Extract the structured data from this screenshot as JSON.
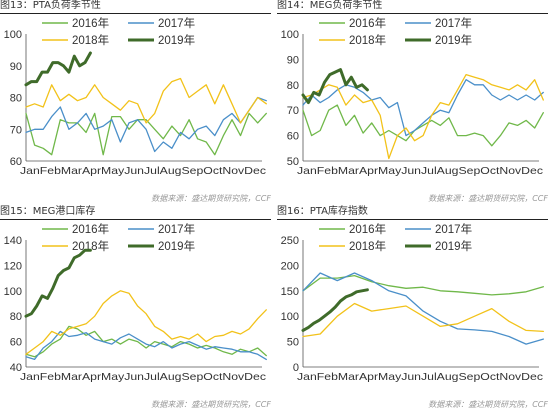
{
  "source_note": "数据来源：盛达期货研究院，CCF",
  "charts": [
    {
      "type": "line",
      "title": "图13：PTA负荷季节性",
      "xlabel": "",
      "ylabel": "",
      "categories": [
        "Jan",
        "Feb",
        "Mar",
        "Apr",
        "May",
        "Jun",
        "Jul",
        "Aug",
        "Sep",
        "Oct",
        "Nov",
        "Dec"
      ],
      "ylim": [
        60,
        100
      ],
      "yticks": [
        60,
        70,
        80,
        90,
        100
      ],
      "legend_position": "top",
      "series": [
        {
          "name": "2016年",
          "color": "#70b84a",
          "width": 1.3,
          "x": [
            0,
            0.4,
            0.8,
            1.2,
            1.6,
            2.0,
            2.4,
            2.8,
            3.2,
            3.6,
            4.0,
            4.4,
            4.8,
            5.2,
            5.6,
            6.0,
            6.4,
            6.8,
            7.2,
            7.6,
            8.0,
            8.4,
            8.8,
            9.2,
            9.6,
            10.0,
            10.4,
            10.8,
            11.2
          ],
          "values": [
            75,
            65,
            64,
            62,
            73,
            72,
            72,
            69,
            75,
            62,
            74,
            74,
            70,
            73,
            73,
            70,
            67,
            71,
            68,
            73,
            67,
            66,
            62,
            68,
            73,
            68,
            75,
            72,
            75
          ]
        },
        {
          "name": "2017年",
          "color": "#4a8fc9",
          "width": 1.3,
          "x": [
            0,
            0.4,
            0.8,
            1.2,
            1.6,
            2.0,
            2.4,
            2.8,
            3.2,
            3.6,
            4.0,
            4.4,
            4.8,
            5.2,
            5.6,
            6.0,
            6.4,
            6.8,
            7.2,
            7.6,
            8.0,
            8.4,
            8.8,
            9.2,
            9.6,
            10.0,
            10.4,
            10.8,
            11.2
          ],
          "values": [
            69,
            70,
            70,
            74,
            77,
            70,
            72,
            75,
            70,
            71,
            73,
            66,
            72,
            73,
            70,
            63,
            66,
            64,
            69,
            67,
            70,
            71,
            68,
            73,
            75,
            72,
            76,
            80,
            79
          ]
        },
        {
          "name": "2018年",
          "color": "#f2c21a",
          "width": 1.3,
          "x": [
            0,
            0.4,
            0.8,
            1.2,
            1.6,
            2.0,
            2.4,
            2.8,
            3.2,
            3.6,
            4.0,
            4.4,
            4.8,
            5.2,
            5.6,
            6.0,
            6.4,
            6.8,
            7.2,
            7.6,
            8.0,
            8.4,
            8.8,
            9.2,
            9.6,
            10.0,
            10.4,
            10.8,
            11.2
          ],
          "values": [
            77,
            78,
            77,
            84,
            79,
            81,
            79,
            80,
            84,
            80,
            78,
            76,
            79,
            78,
            72,
            75,
            82,
            85,
            86,
            80,
            82,
            84,
            78,
            84,
            78,
            72,
            76,
            80,
            78
          ]
        },
        {
          "name": "2019年",
          "color": "#3f6b2a",
          "width": 3,
          "x": [
            0,
            0.25,
            0.5,
            0.75,
            1.0,
            1.25,
            1.5,
            1.75,
            2.0,
            2.25,
            2.5,
            2.75,
            3.0
          ],
          "values": [
            84,
            85,
            85,
            88,
            88,
            91,
            91,
            90,
            88,
            93,
            90,
            91,
            94
          ]
        }
      ]
    },
    {
      "type": "line",
      "title": "图14：MEG负荷季节性",
      "xlabel": "",
      "ylabel": "",
      "categories": [
        "Jan",
        "Feb",
        "Mar",
        "Apr",
        "May",
        "Jun",
        "Jul",
        "Aug",
        "Sep",
        "Oct",
        "Nov",
        "Dec"
      ],
      "ylim": [
        50,
        100
      ],
      "yticks": [
        50,
        60,
        70,
        80,
        90,
        100
      ],
      "legend_position": "top",
      "series": [
        {
          "name": "2016年",
          "color": "#70b84a",
          "width": 1.3,
          "x": [
            0,
            0.4,
            0.8,
            1.2,
            1.6,
            2.0,
            2.4,
            2.8,
            3.2,
            3.6,
            4.0,
            4.4,
            4.8,
            5.2,
            5.6,
            6.0,
            6.4,
            6.8,
            7.2,
            7.6,
            8.0,
            8.4,
            8.8,
            9.2,
            9.6,
            10.0,
            10.4,
            10.8,
            11.2
          ],
          "values": [
            70,
            60,
            62,
            70,
            72,
            64,
            68,
            61,
            65,
            60,
            62,
            60,
            58,
            62,
            64,
            66,
            64,
            67,
            60,
            60,
            61,
            60,
            56,
            60,
            65,
            64,
            66,
            63,
            69
          ]
        },
        {
          "name": "2017年",
          "color": "#4a8fc9",
          "width": 1.3,
          "x": [
            0,
            0.4,
            0.8,
            1.2,
            1.6,
            2.0,
            2.4,
            2.8,
            3.2,
            3.6,
            4.0,
            4.4,
            4.8,
            5.2,
            5.6,
            6.0,
            6.4,
            6.8,
            7.2,
            7.6,
            8.0,
            8.4,
            8.8,
            9.2,
            9.6,
            10.0,
            10.4,
            10.8,
            11.2
          ],
          "values": [
            72,
            76,
            73,
            75,
            78,
            80,
            79,
            77,
            74,
            75,
            71,
            73,
            60,
            62,
            65,
            68,
            70,
            69,
            76,
            82,
            80,
            80,
            76,
            74,
            76,
            74,
            76,
            74,
            77
          ]
        },
        {
          "name": "2018年",
          "color": "#f2c21a",
          "width": 1.3,
          "x": [
            0,
            0.4,
            0.8,
            1.2,
            1.6,
            2.0,
            2.4,
            2.8,
            3.2,
            3.6,
            4.0,
            4.4,
            4.8,
            5.2,
            5.6,
            6.0,
            6.4,
            6.8,
            7.2,
            7.6,
            8.0,
            8.4,
            8.8,
            9.2,
            9.6,
            10.0,
            10.4,
            10.8,
            11.2
          ],
          "values": [
            75,
            76,
            78,
            80,
            79,
            72,
            76,
            73,
            74,
            68,
            51,
            60,
            63,
            58,
            60,
            68,
            73,
            72,
            78,
            84,
            83,
            82,
            80,
            79,
            78,
            80,
            78,
            82,
            74
          ]
        },
        {
          "name": "2019年",
          "color": "#3f6b2a",
          "width": 3,
          "x": [
            0,
            0.25,
            0.5,
            0.75,
            1.0,
            1.25,
            1.5,
            1.75,
            2.0,
            2.25,
            2.5,
            2.75,
            3.0
          ],
          "values": [
            76,
            73,
            77,
            76,
            81,
            84,
            85,
            86,
            80,
            83,
            79,
            80,
            78
          ]
        }
      ]
    },
    {
      "type": "line",
      "title": "图15：MEG港口库存",
      "xlabel": "",
      "ylabel": "",
      "categories": [
        "Jan",
        "Feb",
        "Mar",
        "Apr",
        "May",
        "Jun",
        "Jul",
        "Aug",
        "Sep",
        "Oct",
        "Nov",
        "Dec"
      ],
      "ylim": [
        40,
        140
      ],
      "yticks": [
        40,
        60,
        80,
        100,
        120,
        140
      ],
      "legend_position": "top",
      "series": [
        {
          "name": "2016年",
          "color": "#70b84a",
          "width": 1.3,
          "x": [
            0,
            0.4,
            0.8,
            1.2,
            1.6,
            2.0,
            2.4,
            2.8,
            3.2,
            3.6,
            4.0,
            4.4,
            4.8,
            5.2,
            5.6,
            6.0,
            6.4,
            6.8,
            7.2,
            7.6,
            8.0,
            8.4,
            8.8,
            9.2,
            9.6,
            10.0,
            10.4,
            10.8,
            11.2
          ],
          "values": [
            50,
            48,
            52,
            58,
            62,
            72,
            70,
            65,
            68,
            60,
            62,
            58,
            62,
            60,
            55,
            60,
            58,
            56,
            60,
            58,
            55,
            57,
            55,
            52,
            50,
            54,
            52,
            55,
            49
          ]
        },
        {
          "name": "2017年",
          "color": "#4a8fc9",
          "width": 1.3,
          "x": [
            0,
            0.4,
            0.8,
            1.2,
            1.6,
            2.0,
            2.4,
            2.8,
            3.2,
            3.6,
            4.0,
            4.4,
            4.8,
            5.2,
            5.6,
            6.0,
            6.4,
            6.8,
            7.2,
            7.6,
            8.0,
            8.4,
            8.8,
            9.2,
            9.6,
            10.0,
            10.4,
            10.8,
            11.2
          ],
          "values": [
            48,
            46,
            55,
            60,
            68,
            64,
            65,
            67,
            62,
            60,
            58,
            63,
            66,
            62,
            58,
            56,
            60,
            55,
            58,
            60,
            57,
            54,
            56,
            55,
            54,
            52,
            52,
            50,
            46
          ]
        },
        {
          "name": "2018年",
          "color": "#f2c21a",
          "width": 1.3,
          "x": [
            0,
            0.4,
            0.8,
            1.2,
            1.6,
            2.0,
            2.4,
            2.8,
            3.2,
            3.6,
            4.0,
            4.4,
            4.8,
            5.2,
            5.6,
            6.0,
            6.4,
            6.8,
            7.2,
            7.6,
            8.0,
            8.4,
            8.8,
            9.2,
            9.6,
            10.0,
            10.4,
            10.8,
            11.2
          ],
          "values": [
            50,
            55,
            60,
            68,
            65,
            70,
            72,
            74,
            80,
            90,
            96,
            100,
            98,
            88,
            82,
            72,
            68,
            62,
            64,
            62,
            66,
            60,
            64,
            65,
            68,
            66,
            70,
            78,
            85
          ]
        },
        {
          "name": "2019年",
          "color": "#3f6b2a",
          "width": 3,
          "x": [
            0,
            0.25,
            0.5,
            0.75,
            1.0,
            1.25,
            1.5,
            1.75,
            2.0,
            2.25,
            2.5,
            2.75,
            3.0
          ],
          "values": [
            80,
            82,
            88,
            96,
            94,
            102,
            112,
            116,
            118,
            126,
            128,
            132,
            132
          ]
        }
      ]
    },
    {
      "type": "line",
      "title": "图16：PTA库存指数",
      "xlabel": "",
      "ylabel": "",
      "categories": [
        "Jan",
        "Feb",
        "Mar",
        "Apr",
        "May",
        "Jun",
        "Jul",
        "Aug",
        "Sep",
        "Oct",
        "Nov",
        "Dec"
      ],
      "ylim": [
        0,
        250
      ],
      "yticks": [
        0,
        50,
        100,
        150,
        200,
        250
      ],
      "legend_position": "top",
      "series": [
        {
          "name": "2016年",
          "color": "#70b84a",
          "width": 1.3,
          "x": [
            0,
            0.8,
            1.6,
            2.4,
            3.2,
            4.0,
            4.8,
            5.6,
            6.4,
            7.2,
            8.0,
            8.8,
            9.6,
            10.4,
            11.2
          ],
          "values": [
            150,
            175,
            175,
            180,
            168,
            160,
            155,
            157,
            150,
            148,
            145,
            142,
            144,
            148,
            158
          ]
        },
        {
          "name": "2017年",
          "color": "#4a8fc9",
          "width": 1.3,
          "x": [
            0,
            0.8,
            1.6,
            2.4,
            3.2,
            4.0,
            4.8,
            5.6,
            6.4,
            7.2,
            8.0,
            8.8,
            9.6,
            10.4,
            11.2
          ],
          "values": [
            150,
            185,
            170,
            185,
            170,
            150,
            140,
            110,
            90,
            75,
            73,
            70,
            60,
            45,
            55
          ]
        },
        {
          "name": "2018年",
          "color": "#f2c21a",
          "width": 1.3,
          "x": [
            0,
            0.8,
            1.6,
            2.4,
            3.2,
            4.0,
            4.8,
            5.6,
            6.4,
            7.2,
            8.0,
            8.8,
            9.6,
            10.4,
            11.2
          ],
          "values": [
            60,
            65,
            100,
            125,
            110,
            115,
            120,
            100,
            80,
            85,
            100,
            115,
            90,
            72,
            70
          ]
        },
        {
          "name": "2019年",
          "color": "#3f6b2a",
          "width": 3,
          "x": [
            0,
            0.25,
            0.5,
            0.75,
            1.0,
            1.25,
            1.5,
            1.75,
            2.0,
            2.25,
            2.5,
            2.75,
            3.0
          ],
          "values": [
            72,
            78,
            86,
            92,
            100,
            108,
            118,
            130,
            138,
            142,
            148,
            150,
            152
          ]
        }
      ]
    }
  ]
}
